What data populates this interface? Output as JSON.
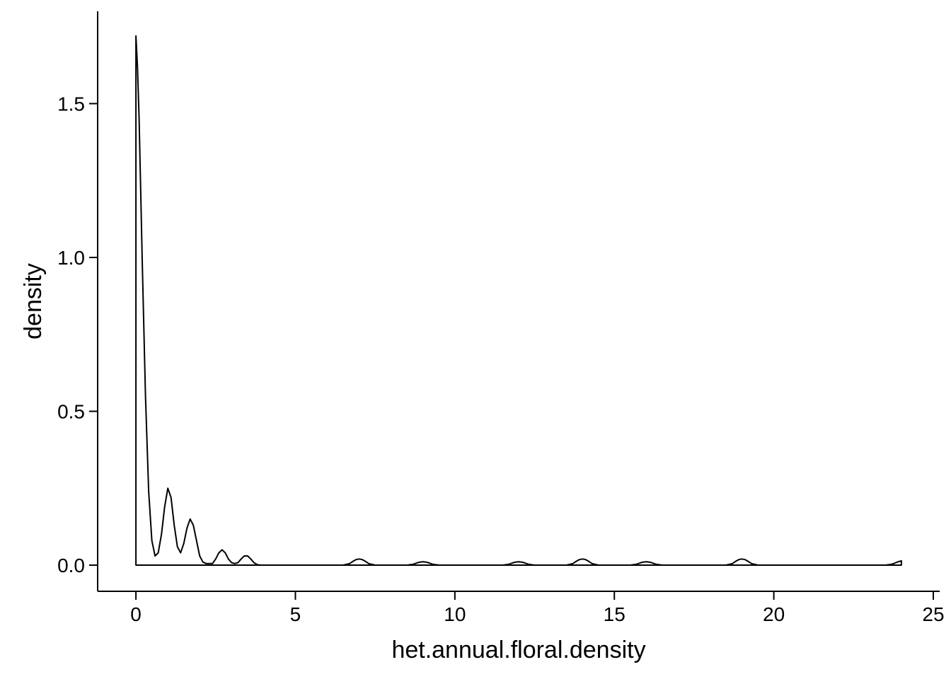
{
  "chart_data": {
    "type": "area",
    "title": "",
    "xlabel": "het.annual.floral.density",
    "ylabel": "density",
    "xlim": [
      -1.2,
      25.2
    ],
    "ylim": [
      -0.085,
      1.8
    ],
    "x_ticks": [
      0,
      5,
      10,
      15,
      20,
      25
    ],
    "x_tick_labels": [
      "0",
      "5",
      "10",
      "15",
      "20",
      "25"
    ],
    "y_ticks": [
      0.0,
      0.5,
      1.0,
      1.5
    ],
    "y_tick_labels": [
      "0.0",
      "0.5",
      "1.0",
      "1.5"
    ],
    "grid": false,
    "legend": "none",
    "series": [
      {
        "x": [
          0,
          0.05,
          0.1,
          0.2,
          0.3,
          0.4,
          0.5,
          0.6,
          0.7,
          0.8,
          0.9,
          1.0,
          1.1,
          1.2,
          1.3,
          1.4,
          1.5,
          1.6,
          1.7,
          1.8,
          1.9,
          2.0,
          2.1,
          2.2,
          2.3,
          2.4,
          2.5,
          2.6,
          2.7,
          2.8,
          2.9,
          3.0,
          3.1,
          3.2,
          3.3,
          3.4,
          3.5,
          3.6,
          3.7,
          3.8,
          3.9,
          4.0,
          4.1,
          4.2,
          4.3,
          4.4,
          4.6,
          5.0,
          6.0,
          6.5,
          6.7,
          6.8,
          6.9,
          7.0,
          7.1,
          7.2,
          7.3,
          7.5,
          8.0,
          8.5,
          8.7,
          8.8,
          8.9,
          9.0,
          9.1,
          9.2,
          9.3,
          9.5,
          11.5,
          11.7,
          11.8,
          11.9,
          12.0,
          12.1,
          12.2,
          12.3,
          12.5,
          13.5,
          13.7,
          13.8,
          13.9,
          14.0,
          14.1,
          14.2,
          14.3,
          14.5,
          15.5,
          15.7,
          15.8,
          15.9,
          16.0,
          16.1,
          16.2,
          16.3,
          16.5,
          18.5,
          18.7,
          18.8,
          18.9,
          19.0,
          19.1,
          19.2,
          19.3,
          19.5,
          23.5,
          23.7,
          23.8,
          23.9,
          24.0
        ],
        "y": [
          1.72,
          1.62,
          1.45,
          0.98,
          0.55,
          0.24,
          0.08,
          0.03,
          0.04,
          0.1,
          0.19,
          0.25,
          0.22,
          0.13,
          0.06,
          0.04,
          0.07,
          0.12,
          0.15,
          0.13,
          0.08,
          0.03,
          0.01,
          0.005,
          0.005,
          0.005,
          0.02,
          0.04,
          0.05,
          0.04,
          0.02,
          0.008,
          0.005,
          0.008,
          0.02,
          0.03,
          0.03,
          0.02,
          0.008,
          0.002,
          0.0,
          0.0,
          0.0,
          0.0,
          0.0,
          0.0,
          0.0,
          0.0,
          0.0,
          0.0,
          0.005,
          0.012,
          0.018,
          0.02,
          0.018,
          0.012,
          0.005,
          0.0,
          0.0,
          0.0,
          0.003,
          0.007,
          0.01,
          0.011,
          0.01,
          0.007,
          0.003,
          0.0,
          0.0,
          0.003,
          0.007,
          0.01,
          0.011,
          0.01,
          0.007,
          0.003,
          0.0,
          0.0,
          0.005,
          0.012,
          0.018,
          0.02,
          0.018,
          0.012,
          0.005,
          0.0,
          0.0,
          0.003,
          0.007,
          0.01,
          0.011,
          0.01,
          0.007,
          0.003,
          0.0,
          0.0,
          0.005,
          0.012,
          0.018,
          0.02,
          0.018,
          0.012,
          0.005,
          0.0,
          0.0,
          0.003,
          0.007,
          0.011,
          0.014
        ]
      }
    ]
  }
}
